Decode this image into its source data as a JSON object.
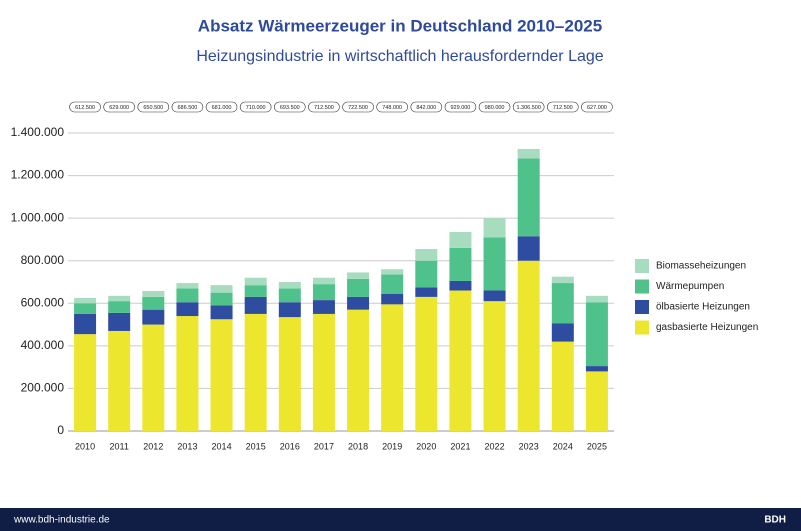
{
  "chart_data": {
    "type": "stacked_bar",
    "title": "Absatz Wärmeerzeuger in Deutschland 2010–2025",
    "subtitle": "Heizungsindustrie in wirtschaftlich herausfordernder Lage",
    "categories": [
      "2010",
      "2011",
      "2012",
      "2013",
      "2014",
      "2015",
      "2016",
      "2017",
      "2018",
      "2019",
      "2020",
      "2021",
      "2022",
      "2023",
      "2024",
      "2025"
    ],
    "series": [
      {
        "name": "gasbasierte Heizungen",
        "color": "#ece62e",
        "values": [
          455000,
          470000,
          500000,
          540000,
          525000,
          550000,
          535000,
          550000,
          570000,
          595000,
          630000,
          660000,
          610000,
          800000,
          420000,
          280000
        ]
      },
      {
        "name": "ölbasierte Heizungen",
        "color": "#2f4da0",
        "values": [
          95000,
          85000,
          70000,
          65000,
          65000,
          80000,
          70000,
          65000,
          60000,
          50000,
          45000,
          45000,
          50000,
          115000,
          85000,
          25000
        ]
      },
      {
        "name": "Wärmepumpen",
        "color": "#4fc28b",
        "values": [
          50000,
          55000,
          60000,
          65000,
          60000,
          55000,
          65000,
          75000,
          85000,
          90000,
          125000,
          155000,
          250000,
          365000,
          190000,
          300000
        ]
      },
      {
        "name": "Biomasseheizungen",
        "color": "#a8dcc0",
        "values": [
          25000,
          25000,
          28000,
          25000,
          35000,
          35000,
          30000,
          30000,
          30000,
          25000,
          55000,
          75000,
          90000,
          45000,
          30000,
          30000
        ]
      }
    ],
    "totals": [
      {
        "value": 612500,
        "label": "612.500"
      },
      {
        "value": 629000,
        "label": "629.000"
      },
      {
        "value": 650500,
        "label": "650.500"
      },
      {
        "value": 686500,
        "label": "686.500"
      },
      {
        "value": 681000,
        "label": "681.000"
      },
      {
        "value": 710000,
        "label": "710.000"
      },
      {
        "value": 693500,
        "label": "693.500"
      },
      {
        "value": 712500,
        "label": "712.500"
      },
      {
        "value": 722500,
        "label": "722.500"
      },
      {
        "value": 748000,
        "label": "748.000"
      },
      {
        "value": 842000,
        "label": "842.000"
      },
      {
        "value": 929000,
        "label": "929.000"
      },
      {
        "value": 980000,
        "label": "980.000"
      },
      {
        "value": 1306500,
        "label": "1.306.500"
      },
      {
        "value": 712500,
        "label": "712.500"
      },
      {
        "value": 627000,
        "label": "627.000"
      }
    ],
    "ylim": [
      0,
      1400000
    ],
    "yticks": [
      0,
      {
        "value": 200000,
        "label": "200.000"
      },
      {
        "value": 400000,
        "label": "400.000"
      },
      {
        "value": 600000,
        "label": "600.000"
      },
      {
        "value": 800000,
        "label": "800.000"
      },
      {
        "value": 1000000,
        "label": "1.000.000"
      },
      {
        "value": 1200000,
        "label": "1.200.000"
      },
      {
        "value": 1400000,
        "label": "1.400.000"
      }
    ],
    "grid": true,
    "legend": "right"
  },
  "footer": {
    "url": "www.bdh-industrie.de",
    "brand": "BDH"
  }
}
